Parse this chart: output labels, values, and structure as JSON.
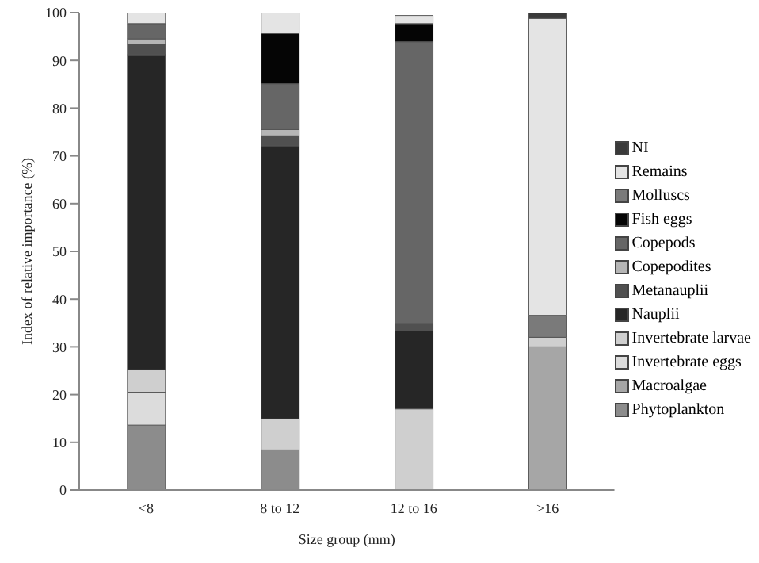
{
  "chart_data": {
    "type": "bar",
    "stacked": true,
    "xlabel": "Size group (mm)",
    "ylabel": "Index of relative importance (%)",
    "categories": [
      "<8",
      "8 to 12",
      "12 to 16",
      ">16"
    ],
    "series": [
      {
        "name": "Phytoplankton",
        "color": "#8c8c8c",
        "values": [
          13.6,
          8.4,
          null,
          0
        ]
      },
      {
        "name": "Macroalgae",
        "color": "#a6a6a6",
        "values": [
          0,
          0,
          0,
          30
        ]
      },
      {
        "name": "Invertebrate eggs",
        "color": "#dcdcdc",
        "values": [
          6.9,
          0,
          0,
          0
        ]
      },
      {
        "name": "Invertebrate larvae",
        "color": "#cfcfcf",
        "values": [
          4.7,
          6.5,
          17,
          2
        ]
      },
      {
        "name": "Nauplii",
        "color": "#262626",
        "values": [
          66,
          57.2,
          16.3,
          0
        ]
      },
      {
        "name": "Metanauplii",
        "color": "#505050",
        "values": [
          2.2,
          2.1,
          1.6,
          0
        ]
      },
      {
        "name": "Copepodites",
        "color": "#b5b5b5",
        "values": [
          1.1,
          1.3,
          0,
          0
        ]
      },
      {
        "name": "Copepods",
        "color": "#666666",
        "values": [
          3.2,
          9.6,
          59,
          0
        ]
      },
      {
        "name": "Fish eggs",
        "color": "#050505",
        "values": [
          0,
          10.5,
          3.8,
          0
        ]
      },
      {
        "name": "Molluscs",
        "color": "#7a7a7a",
        "values": [
          0,
          0,
          0,
          4.6
        ]
      },
      {
        "name": "Remains",
        "color": "#e4e4e4",
        "values": [
          2.3,
          4.4,
          1.7,
          62.2
        ]
      },
      {
        "name": "NI",
        "color": "#3a3a3a",
        "values": [
          0,
          0,
          0,
          1.2
        ]
      }
    ],
    "ylim": [
      0,
      100
    ],
    "yticks": [
      0,
      10,
      20,
      30,
      40,
      50,
      60,
      70,
      80,
      90,
      100
    ],
    "grid": false,
    "legend": "right"
  }
}
